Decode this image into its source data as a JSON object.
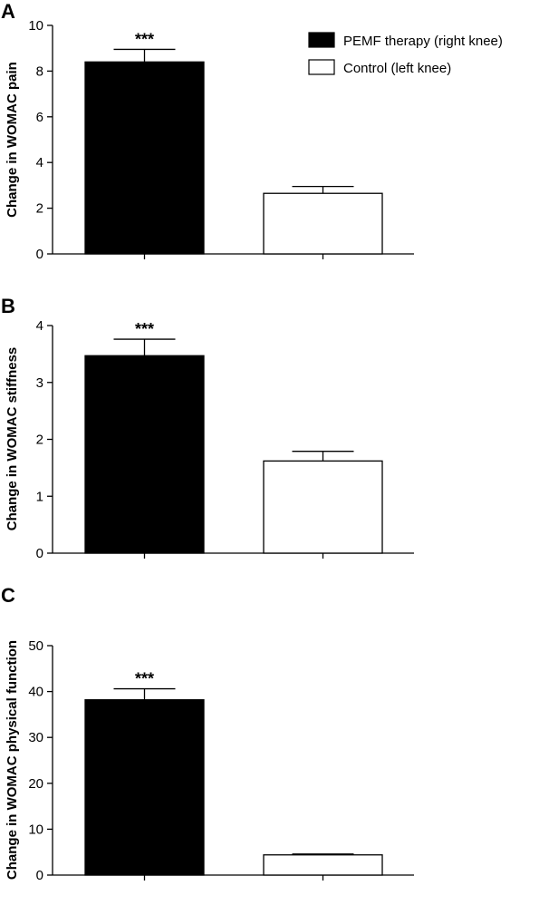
{
  "legend": {
    "position": "top-right",
    "items": [
      {
        "label": "PEMF therapy (right knee)",
        "fill": "#000000"
      },
      {
        "label": "Control (left knee)",
        "fill": "#ffffff"
      }
    ]
  },
  "chart_data": [
    {
      "type": "bar",
      "panel_label": "A",
      "ylabel": "Change in WOMAC pain",
      "ylim": [
        0,
        10
      ],
      "yticks": [
        0,
        2,
        4,
        6,
        8,
        10
      ],
      "grid": false,
      "series": [
        {
          "name": "PEMF therapy (right knee)",
          "value": 8.4,
          "error": 0.55,
          "significance": "***",
          "fill": "#000000"
        },
        {
          "name": "Control (left knee)",
          "value": 2.65,
          "error": 0.3,
          "significance": "",
          "fill": "#ffffff"
        }
      ]
    },
    {
      "type": "bar",
      "panel_label": "B",
      "ylabel": "Change in WOMAC stiffness",
      "ylim": [
        0,
        4
      ],
      "yticks": [
        0,
        1,
        2,
        3,
        4
      ],
      "grid": false,
      "series": [
        {
          "name": "PEMF therapy (right knee)",
          "value": 3.47,
          "error": 0.29,
          "significance": "***",
          "fill": "#000000"
        },
        {
          "name": "Control (left knee)",
          "value": 1.62,
          "error": 0.17,
          "significance": "",
          "fill": "#ffffff"
        }
      ]
    },
    {
      "type": "bar",
      "panel_label": "C",
      "ylabel": "Change in WOMAC physical function",
      "ylim": [
        0,
        50
      ],
      "yticks": [
        0,
        10,
        20,
        30,
        40,
        50
      ],
      "grid": false,
      "series": [
        {
          "name": "PEMF therapy (right knee)",
          "value": 38.2,
          "error": 2.4,
          "significance": "***",
          "fill": "#000000"
        },
        {
          "name": "Control (left knee)",
          "value": 4.4,
          "error": 0.2,
          "significance": "",
          "fill": "#ffffff"
        }
      ]
    }
  ]
}
